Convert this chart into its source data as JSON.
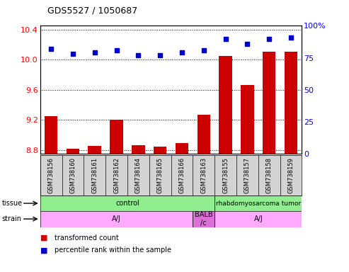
{
  "title": "GDS5527 / 1050687",
  "samples": [
    "GSM738156",
    "GSM738160",
    "GSM738161",
    "GSM738162",
    "GSM738164",
    "GSM738165",
    "GSM738166",
    "GSM738163",
    "GSM738155",
    "GSM738157",
    "GSM738158",
    "GSM738159"
  ],
  "transformed_count": [
    9.25,
    8.82,
    8.85,
    9.2,
    8.86,
    8.84,
    8.89,
    9.27,
    10.05,
    9.66,
    10.11,
    10.11
  ],
  "percentile_rank": [
    82,
    78,
    79,
    81,
    77,
    77,
    79,
    81,
    90,
    86,
    90,
    91
  ],
  "ylim_left": [
    8.75,
    10.45
  ],
  "ylim_right": [
    0,
    100
  ],
  "yticks_left": [
    8.8,
    9.2,
    9.6,
    10.0,
    10.4
  ],
  "yticks_right": [
    0,
    25,
    50,
    75,
    100
  ],
  "bar_color": "#cc0000",
  "dot_color": "#0000cc",
  "tissue_labels": [
    "control",
    "rhabdomyosarcoma tumor"
  ],
  "tissue_col_ranges": [
    [
      0,
      8
    ],
    [
      8,
      12
    ]
  ],
  "tissue_color": "#90ee90",
  "strain_labels": [
    "A/J",
    "BALB\n/c",
    "A/J"
  ],
  "strain_col_ranges": [
    [
      0,
      7
    ],
    [
      7,
      8
    ],
    [
      8,
      12
    ]
  ],
  "strain_color": "#ffaaff",
  "strain_color_balb": "#da70d6",
  "legend_bar_label": "transformed count",
  "legend_dot_label": "percentile rank within the sample",
  "background_color": "#d3d3d3",
  "plot_bg": "#ffffff"
}
